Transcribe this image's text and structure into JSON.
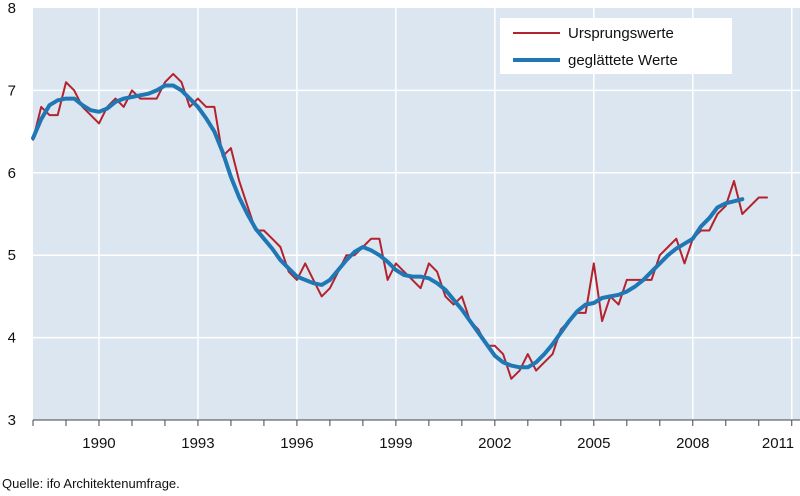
{
  "chart_data": {
    "type": "line",
    "title": "",
    "xlabel": "",
    "ylabel": "",
    "xlim": [
      1988.0,
      2011.25
    ],
    "ylim": [
      3,
      8
    ],
    "x_ticks": [
      1990,
      1993,
      1996,
      1999,
      2002,
      2005,
      2008,
      2011
    ],
    "y_ticks": [
      3,
      4,
      5,
      6,
      7,
      8
    ],
    "grid": true,
    "legend_position": "top-right",
    "background_color": "#dce6f1",
    "grid_color": "#ffffff",
    "series": [
      {
        "name": "Ursprungswerte",
        "color": "#b3232e",
        "x": [
          1988.0,
          1988.25,
          1988.5,
          1988.75,
          1989.0,
          1989.25,
          1989.5,
          1989.75,
          1990.0,
          1990.25,
          1990.5,
          1990.75,
          1991.0,
          1991.25,
          1991.5,
          1991.75,
          1992.0,
          1992.25,
          1992.5,
          1992.75,
          1993.0,
          1993.25,
          1993.5,
          1993.75,
          1994.0,
          1994.25,
          1994.5,
          1994.75,
          1995.0,
          1995.25,
          1995.5,
          1995.75,
          1996.0,
          1996.25,
          1996.5,
          1996.75,
          1997.0,
          1997.25,
          1997.5,
          1997.75,
          1998.0,
          1998.25,
          1998.5,
          1998.75,
          1999.0,
          1999.25,
          1999.5,
          1999.75,
          2000.0,
          2000.25,
          2000.5,
          2000.75,
          2001.0,
          2001.25,
          2001.5,
          2001.75,
          2002.0,
          2002.25,
          2002.5,
          2002.75,
          2003.0,
          2003.25,
          2003.5,
          2003.75,
          2004.0,
          2004.25,
          2004.5,
          2004.75,
          2005.0,
          2005.25,
          2005.5,
          2005.75,
          2006.0,
          2006.25,
          2006.5,
          2006.75,
          2007.0,
          2007.25,
          2007.5,
          2007.75,
          2008.0,
          2008.25,
          2008.5,
          2008.75,
          2009.0,
          2009.25,
          2009.5,
          2009.75,
          2010.0,
          2010.25
        ],
        "values": [
          6.4,
          6.8,
          6.7,
          6.7,
          7.1,
          7.0,
          6.8,
          6.7,
          6.6,
          6.8,
          6.9,
          6.8,
          7.0,
          6.9,
          6.9,
          6.9,
          7.1,
          7.2,
          7.1,
          6.8,
          6.9,
          6.8,
          6.8,
          6.2,
          6.3,
          5.9,
          5.6,
          5.3,
          5.3,
          5.2,
          5.1,
          4.8,
          4.7,
          4.9,
          4.7,
          4.5,
          4.6,
          4.8,
          5.0,
          5.0,
          5.1,
          5.2,
          5.2,
          4.7,
          4.9,
          4.8,
          4.7,
          4.6,
          4.9,
          4.8,
          4.5,
          4.4,
          4.5,
          4.2,
          4.1,
          3.9,
          3.9,
          3.8,
          3.5,
          3.6,
          3.8,
          3.6,
          3.7,
          3.8,
          4.1,
          4.2,
          4.3,
          4.3,
          4.9,
          4.2,
          4.5,
          4.4,
          4.7,
          4.7,
          4.7,
          4.7,
          5.0,
          5.1,
          5.2,
          4.9,
          5.2,
          5.3,
          5.3,
          5.5,
          5.6,
          5.9,
          5.5,
          5.6,
          5.7,
          5.7
        ]
      },
      {
        "name": "geglättete Werte",
        "color": "#1f77b4",
        "x": [
          1988.0,
          1988.25,
          1988.5,
          1988.75,
          1989.0,
          1989.25,
          1989.5,
          1989.75,
          1990.0,
          1990.25,
          1990.5,
          1990.75,
          1991.0,
          1991.25,
          1991.5,
          1991.75,
          1992.0,
          1992.25,
          1992.5,
          1992.75,
          1993.0,
          1993.25,
          1993.5,
          1993.75,
          1994.0,
          1994.25,
          1994.5,
          1994.75,
          1995.0,
          1995.25,
          1995.5,
          1995.75,
          1996.0,
          1996.25,
          1996.5,
          1996.75,
          1997.0,
          1997.25,
          1997.5,
          1997.75,
          1998.0,
          1998.25,
          1998.5,
          1998.75,
          1999.0,
          1999.25,
          1999.5,
          1999.75,
          2000.0,
          2000.25,
          2000.5,
          2000.75,
          2001.0,
          2001.25,
          2001.5,
          2001.75,
          2002.0,
          2002.25,
          2002.5,
          2002.75,
          2003.0,
          2003.25,
          2003.5,
          2003.75,
          2004.0,
          2004.25,
          2004.5,
          2004.75,
          2005.0,
          2005.25,
          2005.5,
          2005.75,
          2006.0,
          2006.25,
          2006.5,
          2006.75,
          2007.0,
          2007.25,
          2007.5,
          2007.75,
          2008.0,
          2008.25,
          2008.5,
          2008.75,
          2009.0,
          2009.5
        ],
        "values": [
          6.42,
          6.65,
          6.82,
          6.88,
          6.9,
          6.9,
          6.82,
          6.76,
          6.74,
          6.78,
          6.86,
          6.9,
          6.92,
          6.94,
          6.96,
          7.0,
          7.06,
          7.06,
          7.0,
          6.9,
          6.8,
          6.66,
          6.5,
          6.25,
          5.95,
          5.7,
          5.5,
          5.32,
          5.2,
          5.08,
          4.94,
          4.84,
          4.74,
          4.7,
          4.66,
          4.64,
          4.7,
          4.82,
          4.94,
          5.04,
          5.1,
          5.06,
          5.0,
          4.92,
          4.82,
          4.76,
          4.74,
          4.74,
          4.72,
          4.66,
          4.58,
          4.46,
          4.34,
          4.2,
          4.06,
          3.92,
          3.78,
          3.7,
          3.66,
          3.64,
          3.64,
          3.7,
          3.8,
          3.92,
          4.06,
          4.2,
          4.32,
          4.4,
          4.42,
          4.48,
          4.5,
          4.52,
          4.56,
          4.62,
          4.7,
          4.8,
          4.9,
          5.0,
          5.08,
          5.14,
          5.2,
          5.35,
          5.45,
          5.58,
          5.63,
          5.68
        ]
      }
    ]
  },
  "source": "Quelle: ifo Architektenumfrage."
}
